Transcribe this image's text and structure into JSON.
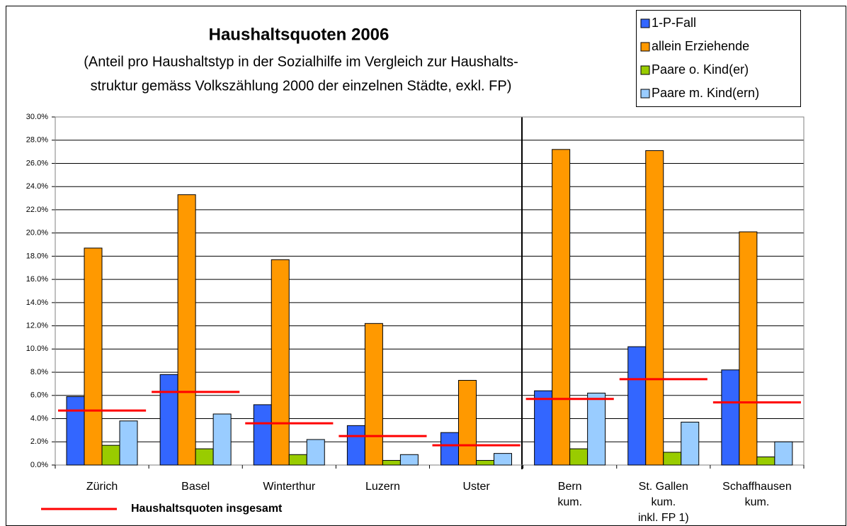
{
  "chart_data": {
    "type": "bar",
    "title": "Haushaltsquoten 2006",
    "subtitle": [
      "(Anteil pro Haushaltstyp in der Sozialhilfe im Vergleich zur Haushalts-",
      "struktur gemäss Volkszählung 2000 der einzelnen Städte, exkl. FP)"
    ],
    "categories": [
      "Zürich",
      "Basel",
      "Winterthur",
      "Luzern",
      "Uster",
      "Bern\nkum.",
      "St. Gallen\nkum.\ninkl. FP  1)",
      "Schaffhausen\nkum."
    ],
    "series": [
      {
        "name": "1-P-Fall",
        "color": "#3366ff",
        "values": [
          5.9,
          7.8,
          5.2,
          3.4,
          2.8,
          6.4,
          10.2,
          8.2
        ]
      },
      {
        "name": "allein Erziehende",
        "color": "#ff9900",
        "values": [
          18.7,
          23.3,
          17.7,
          12.2,
          7.3,
          27.2,
          27.1,
          20.1
        ]
      },
      {
        "name": "Paare o. Kind(er)",
        "color": "#99cc00",
        "values": [
          1.7,
          1.4,
          0.9,
          0.4,
          0.4,
          1.4,
          1.1,
          0.7
        ]
      },
      {
        "name": "Paare m. Kind(ern)",
        "color": "#99ccff",
        "values": [
          3.8,
          4.4,
          2.2,
          0.9,
          1.0,
          6.2,
          3.7,
          2.0
        ]
      }
    ],
    "overall": {
      "name": "Haushaltsquoten insgesamt",
      "color": "#ff0000",
      "values": [
        4.7,
        6.3,
        3.6,
        2.5,
        1.7,
        5.7,
        7.4,
        5.4
      ]
    },
    "ylim": [
      0,
      30
    ],
    "yticks": [
      {
        "value": 0,
        "label": "0.0%"
      },
      {
        "value": 2,
        "label": "2.0%"
      },
      {
        "value": 4,
        "label": "4.0%"
      },
      {
        "value": 6,
        "label": "6.0%"
      },
      {
        "value": 8,
        "label": "8.0%"
      },
      {
        "value": 10,
        "label": "10.0%"
      },
      {
        "value": 12,
        "label": "12.0%"
      },
      {
        "value": 14,
        "label": "14.0%"
      },
      {
        "value": 16,
        "label": "16.0%"
      },
      {
        "value": 18,
        "label": "18.0%"
      },
      {
        "value": 20,
        "label": "20.0%"
      },
      {
        "value": 22,
        "label": "22.0%"
      },
      {
        "value": 24,
        "label": "24.0%"
      },
      {
        "value": 26,
        "label": "26.0%"
      },
      {
        "value": 28,
        "label": "28.0%"
      },
      {
        "value": 30,
        "label": "30.0%"
      }
    ],
    "grid": true,
    "legend": "top-right"
  }
}
